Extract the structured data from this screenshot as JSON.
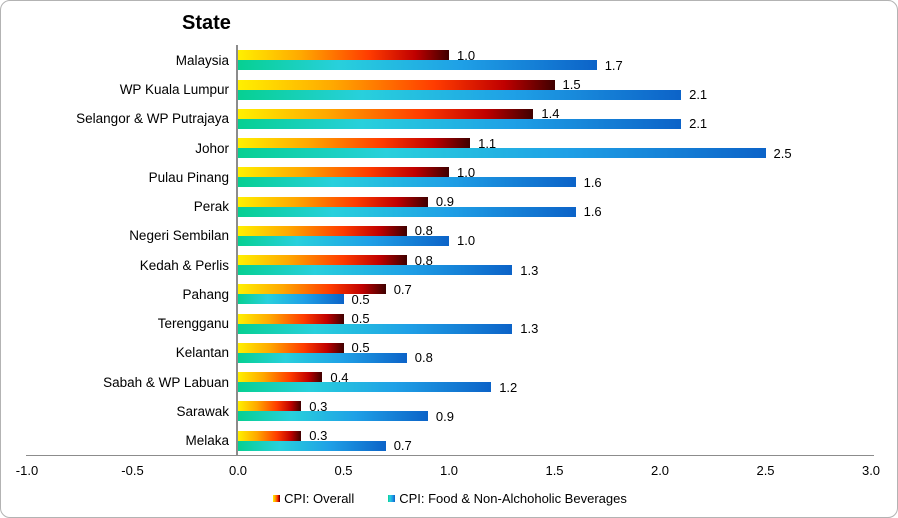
{
  "chart_data": {
    "type": "bar",
    "orientation": "horizontal",
    "title": "State",
    "categories": [
      "Malaysia",
      "WP Kuala Lumpur",
      "Selangor & WP Putrajaya",
      "Johor",
      "Pulau Pinang",
      "Perak",
      "Negeri Sembilan",
      "Kedah & Perlis",
      "Pahang",
      "Terengganu",
      "Kelantan",
      "Sabah & WP Labuan",
      "Sarawak",
      "Melaka"
    ],
    "series": [
      {
        "name": "CPI: Overall",
        "values": [
          1.0,
          1.5,
          1.4,
          1.1,
          1.0,
          0.9,
          0.8,
          0.8,
          0.7,
          0.5,
          0.5,
          0.4,
          0.3,
          0.3
        ],
        "gradient": [
          "#FFF000",
          "#FFA800",
          "#FF3C00",
          "#C00000",
          "#3F0000"
        ],
        "gradient_stops": [
          0,
          30,
          62,
          84,
          100
        ]
      },
      {
        "name": "CPI: Food & Non-Alchoholic Beverages",
        "values": [
          1.7,
          2.1,
          2.1,
          2.5,
          1.6,
          1.6,
          1.0,
          1.3,
          0.5,
          1.3,
          0.8,
          1.2,
          0.9,
          0.7
        ],
        "gradient": [
          "#06D092",
          "#28D0DC",
          "#1FA0E6",
          "#0C63C8"
        ],
        "gradient_stops": [
          0,
          28,
          62,
          100
        ]
      }
    ],
    "xlim": [
      -1.0,
      3.0
    ],
    "x_ticks": [
      {
        "value": -1.0,
        "label": "-1.0"
      },
      {
        "value": -0.5,
        "label": "-0.5"
      },
      {
        "value": 0.0,
        "label": "0.0"
      },
      {
        "value": 0.5,
        "label": "0.5"
      },
      {
        "value": 1.0,
        "label": "1.0"
      },
      {
        "value": 1.5,
        "label": "1.5"
      },
      {
        "value": 2.0,
        "label": "2.0"
      },
      {
        "value": 2.5,
        "label": "2.5"
      },
      {
        "value": 3.0,
        "label": "3.0"
      }
    ],
    "value_label_decimals": 1,
    "grid": false,
    "legend_position": "bottom-center"
  },
  "legend": {
    "items": [
      {
        "label": "CPI: Overall"
      },
      {
        "label": "CPI: Food & Non-Alchoholic Beverages"
      }
    ]
  },
  "colors": {
    "axis_line": "#8c8c8c",
    "chart_border": "#b3b3b3",
    "text": "#000000",
    "background": "#ffffff"
  }
}
